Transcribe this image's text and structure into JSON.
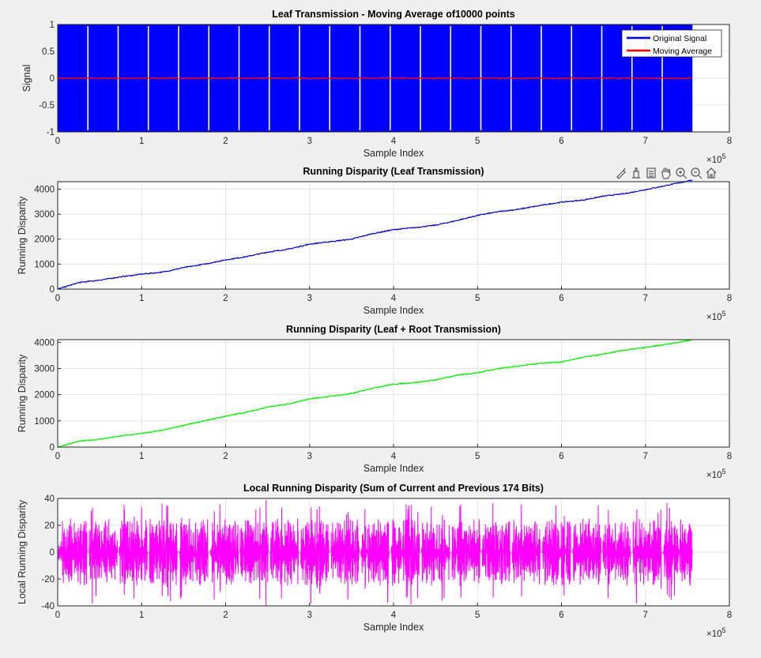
{
  "figure": {
    "toolbar": [
      "brush-icon",
      "data-tip-icon",
      "legend-icon",
      "pan-icon",
      "zoom-in-icon",
      "zoom-out-icon",
      "home-icon"
    ]
  },
  "chart_data": [
    {
      "type": "line",
      "title": "Leaf Transmission - Moving Average of10000 points",
      "xlabel": "Sample Index",
      "ylabel": "Signal",
      "xlim": [
        0,
        800000
      ],
      "ylim": [
        -1,
        1
      ],
      "x_exponent": "×10",
      "x_exponent_power": "5",
      "xticks": [
        "0",
        "1",
        "2",
        "3",
        "4",
        "5",
        "6",
        "7",
        "8"
      ],
      "yticks": [
        "-1",
        "-0.5",
        "0",
        "0.5",
        "1"
      ],
      "grid": true,
      "legend": "top-right",
      "series": [
        {
          "name": "Original Signal",
          "color": "#0000ff",
          "kind": "binary",
          "values": [
            -1,
            1
          ],
          "x_end": 756000,
          "gap_x": [
            36000,
            72000,
            108000,
            144000,
            180000,
            216000,
            252000,
            288000,
            324000,
            360000,
            396000,
            432000,
            468000,
            504000,
            540000,
            576000,
            612000,
            648000,
            684000,
            720000
          ]
        },
        {
          "name": "Moving Average",
          "color": "#ff0000",
          "kind": "line",
          "x": [
            0,
            756000
          ],
          "values": [
            0,
            0
          ]
        }
      ]
    },
    {
      "type": "line",
      "title": "Running Disparity (Leaf Transmission)",
      "xlabel": "Sample Index",
      "ylabel": "Running Disparity",
      "xlim": [
        0,
        800000
      ],
      "ylim": [
        0,
        4300
      ],
      "x_exponent": "×10",
      "x_exponent_power": "5",
      "xticks": [
        "0",
        "1",
        "2",
        "3",
        "4",
        "5",
        "6",
        "7",
        "8"
      ],
      "yticks": [
        "0",
        "1000",
        "2000",
        "3000",
        "4000"
      ],
      "grid": true,
      "series": [
        {
          "color": "#0000cc",
          "x": [
            0,
            25000,
            50000,
            75000,
            100000,
            125000,
            150000,
            175000,
            200000,
            225000,
            250000,
            275000,
            300000,
            325000,
            350000,
            375000,
            400000,
            425000,
            450000,
            475000,
            500000,
            525000,
            550000,
            575000,
            600000,
            625000,
            650000,
            675000,
            700000,
            725000,
            756000
          ],
          "values": [
            0,
            260,
            360,
            490,
            600,
            680,
            860,
            1000,
            1170,
            1300,
            1480,
            1600,
            1800,
            1900,
            2000,
            2220,
            2380,
            2460,
            2560,
            2740,
            2950,
            3100,
            3200,
            3350,
            3480,
            3560,
            3720,
            3820,
            3980,
            4150,
            4360
          ]
        }
      ]
    },
    {
      "type": "line",
      "title": "Running Disparity (Leaf + Root Transmission)",
      "xlabel": "Sample Index",
      "ylabel": "Running Disparity",
      "xlim": [
        0,
        800000
      ],
      "ylim": [
        0,
        4100
      ],
      "x_exponent": "×10",
      "x_exponent_power": "5",
      "xticks": [
        "0",
        "1",
        "2",
        "3",
        "4",
        "5",
        "6",
        "7",
        "8"
      ],
      "yticks": [
        "0",
        "1000",
        "2000",
        "3000",
        "4000"
      ],
      "grid": true,
      "series": [
        {
          "color": "#00ee00",
          "x": [
            0,
            25000,
            50000,
            75000,
            100000,
            125000,
            150000,
            175000,
            200000,
            225000,
            250000,
            275000,
            300000,
            325000,
            350000,
            375000,
            400000,
            425000,
            450000,
            475000,
            500000,
            525000,
            550000,
            575000,
            600000,
            625000,
            650000,
            675000,
            700000,
            725000,
            756000
          ],
          "values": [
            0,
            220,
            300,
            420,
            520,
            640,
            830,
            1000,
            1180,
            1330,
            1530,
            1640,
            1840,
            1940,
            2040,
            2250,
            2400,
            2460,
            2560,
            2740,
            2840,
            3000,
            3100,
            3200,
            3250,
            3420,
            3550,
            3700,
            3800,
            3920,
            4100
          ]
        }
      ]
    },
    {
      "type": "line",
      "title": "Local Running Disparity (Sum of Current and Previous 174 Bits)",
      "xlabel": "Sample Index",
      "ylabel": "Local Running Disparity",
      "xlim": [
        0,
        800000
      ],
      "ylim": [
        -40,
        40
      ],
      "x_exponent": "×10",
      "x_exponent_power": "5",
      "xticks": [
        "0",
        "1",
        "2",
        "3",
        "4",
        "5",
        "6",
        "7",
        "8"
      ],
      "yticks": [
        "-40",
        "-20",
        "0",
        "20",
        "40"
      ],
      "grid": true,
      "series": [
        {
          "color": "#ff00ff",
          "kind": "noise",
          "typical_range": [
            -25,
            25
          ],
          "extremes": [
            -40,
            38
          ],
          "x_end": 756000,
          "gap_x": [
            36000,
            72000,
            108000,
            144000,
            180000,
            216000,
            252000,
            288000,
            324000,
            360000,
            396000,
            432000,
            468000,
            504000,
            540000,
            576000,
            612000,
            648000,
            684000,
            720000
          ]
        }
      ]
    }
  ]
}
